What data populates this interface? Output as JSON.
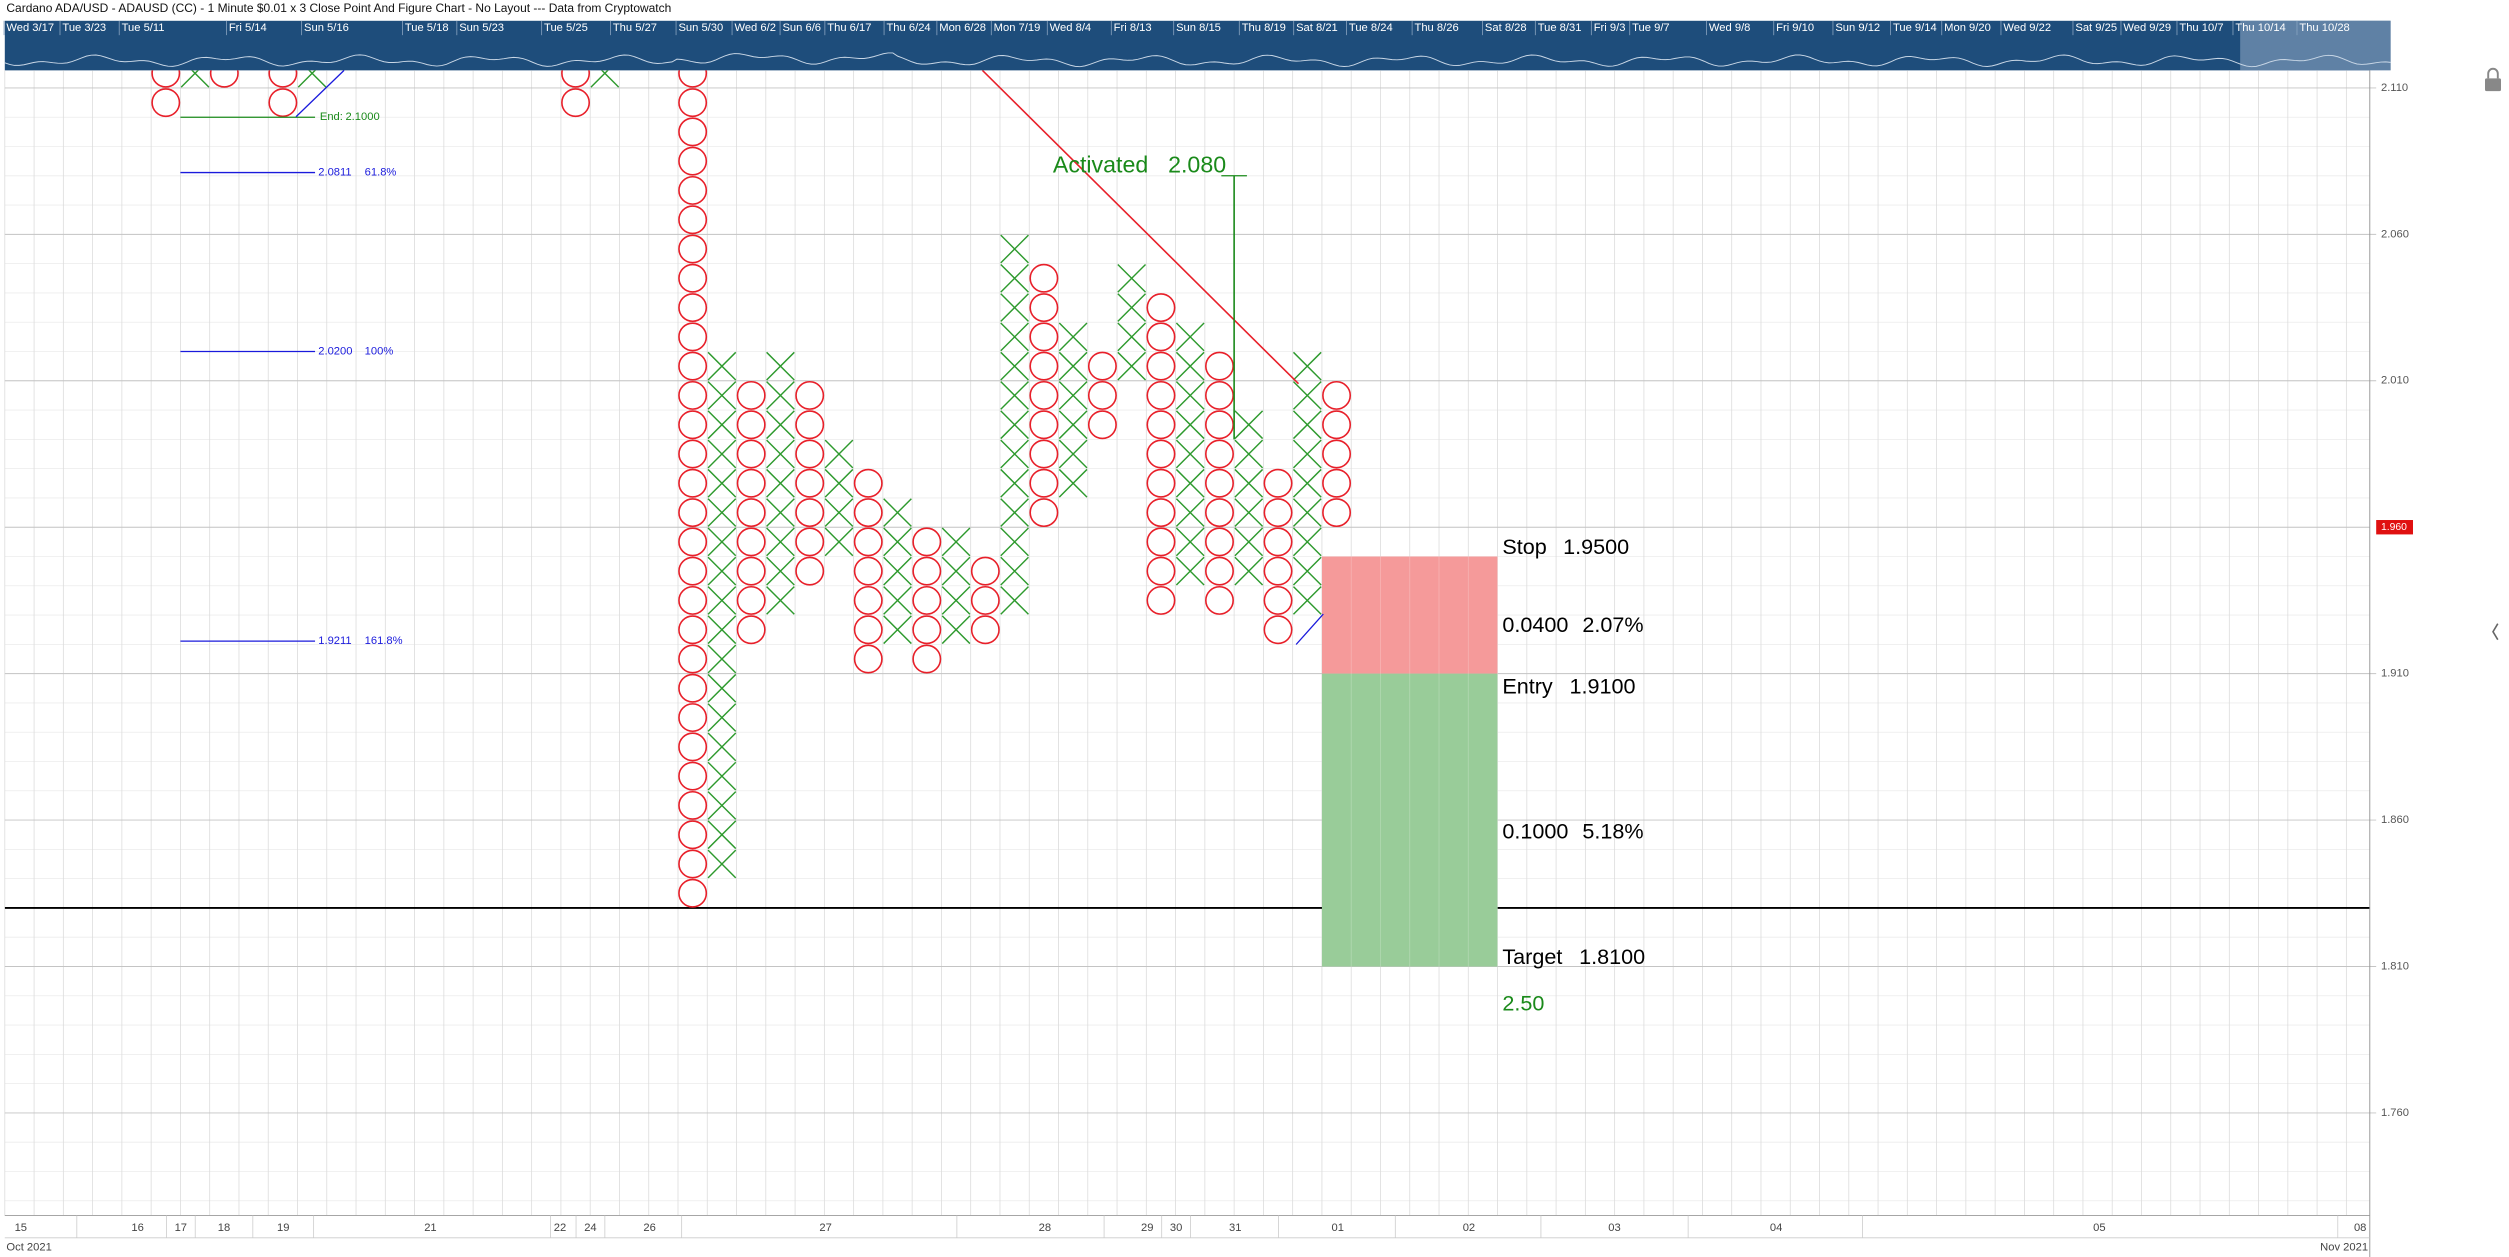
{
  "header": {
    "title": "Cardano ADA/USD - ADAUSD (CC) - 1 Minute $0.01 x 3 Close Point And Figure Chart - No Layout --- Data from Cryptowatch"
  },
  "navigator": {
    "labels": [
      "Wed 3/17",
      "Tue 3/23",
      "Tue 5/11",
      "Fri 5/14",
      "Sun 5/16",
      "Tue 5/18",
      "Sun 5/23",
      "Tue 5/25",
      "Thu 5/27",
      "Sun 5/30",
      "Wed 6/2",
      "Sun 6/6",
      "Thu 6/17",
      "Thu 6/24",
      "Mon 6/28",
      "Mon 7/19",
      "Wed 8/4",
      "Fri 8/13",
      "Sun 8/15",
      "Thu 8/19",
      "Sat 8/21",
      "Tue 8/24",
      "Thu 8/26",
      "Sat 8/28",
      "Tue 8/31",
      "Fri 9/3",
      "Tue 9/7",
      "Wed 9/8",
      "Fri 9/10",
      "Sun 9/12",
      "Tue 9/14",
      "Mon 9/20",
      "Wed 9/22",
      "Sat 9/25",
      "Wed 9/29",
      "Thu 10/7",
      "Thu 10/14",
      "Thu 10/28"
    ]
  },
  "chart_data": {
    "type": "pointfigure",
    "box_size": 0.01,
    "x_color": "#2e9a2e",
    "o_color": "#e8202a",
    "xlim": [
      -23.5,
      57.3
    ],
    "ylim": [
      1.725,
      2.116
    ],
    "yticks": [
      {
        "value": 1.76,
        "label": "1.760"
      },
      {
        "value": 1.81,
        "label": "1.810"
      },
      {
        "value": 1.86,
        "label": "1.860"
      },
      {
        "value": 1.91,
        "label": "1.910"
      },
      {
        "value": 2.01,
        "label": "2.010"
      },
      {
        "value": 2.06,
        "label": "2.060"
      },
      {
        "value": 2.11,
        "label": "2.110"
      }
    ],
    "last_price": {
      "value": 1.96,
      "label": "1.960",
      "color": "#e01010"
    },
    "columns": [
      {
        "col": -18,
        "mark": "O",
        "low": 2.1,
        "high": 2.12
      },
      {
        "col": -17,
        "mark": "X",
        "low": 2.11,
        "high": 2.12
      },
      {
        "col": -16,
        "mark": "O",
        "low": 2.11,
        "high": 2.12
      },
      {
        "col": -14,
        "mark": "O",
        "low": 2.1,
        "high": 2.12
      },
      {
        "col": -13,
        "mark": "X",
        "low": 2.11,
        "high": 2.12
      },
      {
        "col": -4,
        "mark": "O",
        "low": 2.1,
        "high": 2.12
      },
      {
        "col": -3,
        "mark": "X",
        "low": 2.11,
        "high": 2.12
      },
      {
        "col": 0,
        "mark": "O",
        "low": 1.83,
        "high": 2.12
      },
      {
        "col": 1,
        "mark": "X",
        "low": 1.84,
        "high": 2.01
      },
      {
        "col": 2,
        "mark": "O",
        "low": 1.92,
        "high": 2.0
      },
      {
        "col": 3,
        "mark": "X",
        "low": 1.93,
        "high": 2.01
      },
      {
        "col": 4,
        "mark": "O",
        "low": 1.94,
        "high": 2.0
      },
      {
        "col": 5,
        "mark": "X",
        "low": 1.95,
        "high": 1.98
      },
      {
        "col": 6,
        "mark": "O",
        "low": 1.91,
        "high": 1.97
      },
      {
        "col": 7,
        "mark": "X",
        "low": 1.92,
        "high": 1.96
      },
      {
        "col": 8,
        "mark": "O",
        "low": 1.91,
        "high": 1.95
      },
      {
        "col": 9,
        "mark": "X",
        "low": 1.92,
        "high": 1.95
      },
      {
        "col": 10,
        "mark": "O",
        "low": 1.92,
        "high": 1.94
      },
      {
        "col": 11,
        "mark": "X",
        "low": 1.93,
        "high": 2.05
      },
      {
        "col": 12,
        "mark": "O",
        "low": 1.96,
        "high": 2.04
      },
      {
        "col": 13,
        "mark": "X",
        "low": 1.97,
        "high": 2.02
      },
      {
        "col": 14,
        "mark": "O",
        "low": 1.99,
        "high": 2.01
      },
      {
        "col": 15,
        "mark": "X",
        "low": 2.01,
        "high": 2.04
      },
      {
        "col": 16,
        "mark": "O",
        "low": 1.93,
        "high": 2.03
      },
      {
        "col": 17,
        "mark": "X",
        "low": 1.94,
        "high": 2.02
      },
      {
        "col": 18,
        "mark": "O",
        "low": 1.93,
        "high": 2.01
      },
      {
        "col": 19,
        "mark": "X",
        "low": 1.94,
        "high": 1.99
      },
      {
        "col": 20,
        "mark": "O",
        "low": 1.92,
        "high": 1.97
      },
      {
        "col": 21,
        "mark": "X",
        "low": 1.93,
        "high": 2.01
      },
      {
        "col": 22,
        "mark": "O",
        "low": 1.96,
        "high": 2.0
      }
    ],
    "hline": {
      "value": 1.83,
      "color": "#000000"
    },
    "trendline": {
      "x": [
        9.9,
        20.7
      ],
      "y": [
        2.116,
        2.009
      ],
      "color": "#e8202a"
    },
    "activated": {
      "name": "Activated",
      "value": 2.08,
      "label": "2.080",
      "x": 18.5,
      "low": 1.99,
      "color": "#1a8a1a"
    },
    "fib": {
      "x": [
        -17.5,
        -12.9
      ],
      "color": "#1a1adc",
      "end": {
        "name": "End:",
        "value": 2.1,
        "label": "2.1000",
        "color": "#1a8a1a"
      },
      "levels": [
        {
          "value": 2.0811,
          "label": "2.0811",
          "pct": {
            "value": 61.8,
            "label": "61.8%"
          }
        },
        {
          "value": 2.02,
          "label": "2.0200",
          "pct": {
            "value": 100,
            "label": "100%"
          }
        },
        {
          "value": 1.9211,
          "label": "1.9211",
          "pct": {
            "value": 161.8,
            "label": "161.8%"
          }
        }
      ]
    },
    "position": {
      "x": [
        21.5,
        27.5
      ],
      "risk_color": "#f59a9a",
      "reward_color": "#99cc99",
      "stop": {
        "name": "Stop",
        "value": 1.95,
        "label": "1.9500"
      },
      "entry": {
        "name": "Entry",
        "value": 1.91,
        "label": "1.9100"
      },
      "target": {
        "name": "Target",
        "value": 1.81,
        "label": "1.8100"
      },
      "risk": {
        "value": 0.04,
        "label": "0.0400",
        "pct": {
          "value": 2.07,
          "label": "2.07%"
        }
      },
      "reward": {
        "value": 0.1,
        "label": "0.1000",
        "pct": {
          "value": 5.18,
          "label": "5.18%"
        }
      },
      "ratio": {
        "value": 2.5,
        "label": "2.50",
        "color": "#1a8a1a"
      }
    },
    "x_axis_labels": [
      "15",
      "16",
      "17",
      "18",
      "19",
      "21",
      "22",
      "24",
      "26",
      "27",
      "28",
      "29",
      "30",
      "31",
      "01",
      "02",
      "03",
      "04",
      "05",
      "08"
    ],
    "months": [
      "Oct 2021",
      "Nov 2021"
    ]
  }
}
